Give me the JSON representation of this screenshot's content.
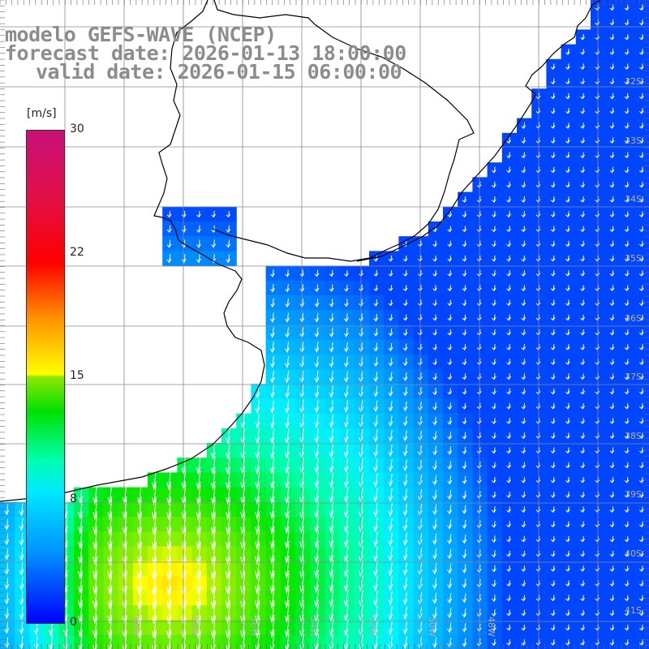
{
  "title": {
    "model": "modelo GEFS-WAVE (NCEP)",
    "forecast": "forecast date: 2026-01-13 18:00:00",
    "valid": "valid date: 2026-01-15 06:00:00"
  },
  "colorbar": {
    "unit": "[m/s]",
    "min": 0,
    "max": 30,
    "ticks": [
      "30",
      "22",
      "15",
      "8",
      "0"
    ],
    "tick_values": [
      30,
      22,
      15,
      8,
      0
    ],
    "colors": [
      "#0000ff",
      "#0090ff",
      "#00e8ff",
      "#00e000",
      "#ffff00",
      "#ff9000",
      "#ff0000",
      "#c8107a"
    ]
  },
  "latitude_labels": [
    "32S",
    "33S",
    "34S",
    "35S",
    "36S",
    "37S",
    "38S",
    "39S",
    "40S",
    "41S"
  ],
  "longitude_labels": [
    "60W",
    "58W",
    "56W",
    "54W",
    "52W",
    "50W",
    "48W"
  ],
  "colors": {
    "land": "#ffffff",
    "coastline": "#000000",
    "grid": "#8a8a8a",
    "arrows": "#ffffff",
    "title": "#8c8c8c"
  }
}
